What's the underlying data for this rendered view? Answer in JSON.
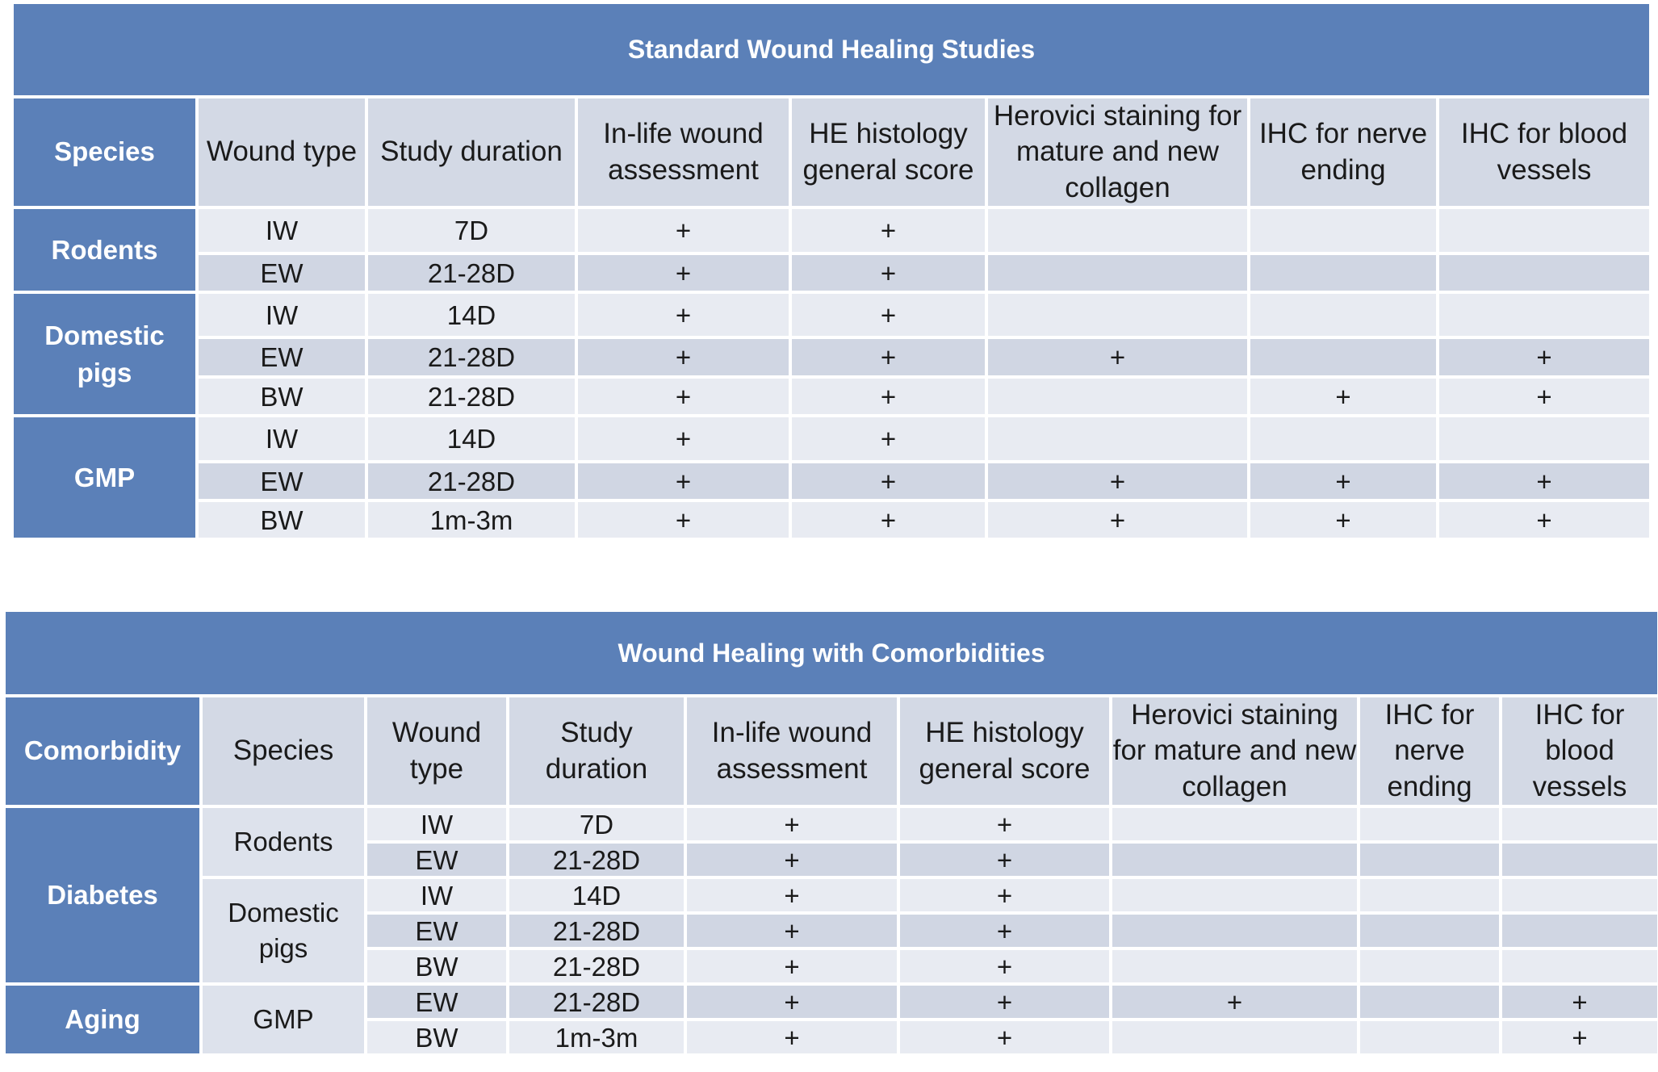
{
  "standard": {
    "title": "Standard Wound Healing Studies",
    "headers": [
      "Species",
      "Wound type",
      "Study duration",
      "In-life wound assessment",
      "HE histology general score",
      "Herovici staining for mature and new collagen",
      "IHC for nerve ending",
      "IHC for blood vessels"
    ],
    "groups": [
      {
        "species": "Rodents",
        "rows": [
          {
            "wound": "IW",
            "duration": "7D",
            "cells": [
              "+",
              "+",
              "",
              "",
              ""
            ]
          },
          {
            "wound": "EW",
            "duration": "21-28D",
            "cells": [
              "+",
              "+",
              "",
              "",
              ""
            ]
          }
        ]
      },
      {
        "species": "Domestic pigs",
        "rows": [
          {
            "wound": "IW",
            "duration": "14D",
            "cells": [
              "+",
              "+",
              "",
              "",
              ""
            ]
          },
          {
            "wound": "EW",
            "duration": "21-28D",
            "cells": [
              "+",
              "+",
              "+",
              "",
              "+"
            ]
          },
          {
            "wound": "BW",
            "duration": "21-28D",
            "cells": [
              "+",
              "+",
              "",
              "+",
              "+"
            ]
          }
        ]
      },
      {
        "species": "GMP",
        "rows": [
          {
            "wound": "IW",
            "duration": "14D",
            "cells": [
              "+",
              "+",
              "",
              "",
              ""
            ]
          },
          {
            "wound": "EW",
            "duration": "21-28D",
            "cells": [
              "+",
              "+",
              "+",
              "+",
              "+"
            ]
          },
          {
            "wound": "BW",
            "duration": "1m-3m",
            "cells": [
              "+",
              "+",
              "+",
              "+",
              "+"
            ]
          }
        ]
      }
    ]
  },
  "comorbid": {
    "title": "Wound Healing with Comorbidities",
    "headers": [
      "Comorbidity",
      "Species",
      "Wound type",
      "Study duration",
      "In-life wound assessment",
      "HE histology general score",
      "Herovici staining for mature and new collagen",
      "IHC for nerve ending",
      "IHC for blood vessels"
    ],
    "groups": [
      {
        "comorbidity": "Diabetes",
        "species": [
          {
            "name": "Rodents",
            "rows": [
              {
                "wound": "IW",
                "duration": "7D",
                "cells": [
                  "+",
                  "+",
                  "",
                  "",
                  ""
                ]
              },
              {
                "wound": "EW",
                "duration": "21-28D",
                "cells": [
                  "+",
                  "+",
                  "",
                  "",
                  ""
                ]
              }
            ]
          },
          {
            "name": "Domestic pigs",
            "rows": [
              {
                "wound": "IW",
                "duration": "14D",
                "cells": [
                  "+",
                  "+",
                  "",
                  "",
                  ""
                ]
              },
              {
                "wound": "EW",
                "duration": "21-28D",
                "cells": [
                  "+",
                  "+",
                  "",
                  "",
                  ""
                ]
              },
              {
                "wound": "BW",
                "duration": "21-28D",
                "cells": [
                  "+",
                  "+",
                  "",
                  "",
                  ""
                ]
              }
            ]
          }
        ]
      },
      {
        "comorbidity": "Aging",
        "species": [
          {
            "name": "GMP",
            "rows": [
              {
                "wound": "EW",
                "duration": "21-28D",
                "cells": [
                  "+",
                  "+",
                  "+",
                  "",
                  "+"
                ]
              },
              {
                "wound": "BW",
                "duration": "1m-3m",
                "cells": [
                  "+",
                  "+",
                  "",
                  "",
                  "+"
                ]
              }
            ]
          }
        ]
      }
    ]
  }
}
